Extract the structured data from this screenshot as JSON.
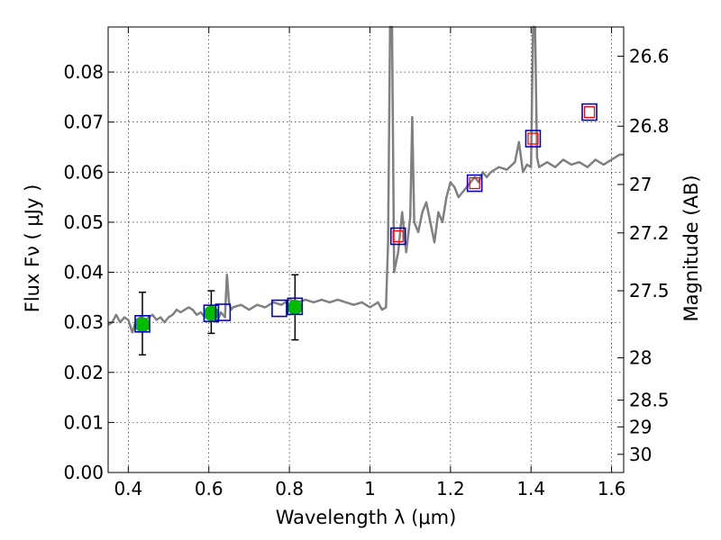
{
  "chart_data": {
    "type": "scatter",
    "xlabel": "Wavelength  λ (μm)",
    "ylabel": "Flux  Fν ( μJy )",
    "y2label": "Magnitude (AB)",
    "xlim": [
      0.35,
      1.63
    ],
    "ylim": [
      0.0,
      0.089
    ],
    "grid": true,
    "x_ticks": [
      0.4,
      0.6,
      0.8,
      1.0,
      1.2,
      1.4,
      1.6
    ],
    "x_tick_labels": [
      "0.4",
      "0.6",
      "0.8",
      "1",
      "1.2",
      "1.4",
      "1.6"
    ],
    "y_ticks": [
      0.0,
      0.01,
      0.02,
      0.03,
      0.04,
      0.05,
      0.06,
      0.07,
      0.08
    ],
    "y_tick_labels": [
      "0.00",
      "0.01",
      "0.02",
      "0.03",
      "0.04",
      "0.05",
      "0.06",
      "0.07",
      "0.08"
    ],
    "mag_ticks": [
      26.6,
      26.8,
      27.0,
      27.2,
      27.5,
      28.0,
      28.5,
      29.0,
      30.0
    ],
    "mag_tick_labels": [
      "26.6",
      "26.8",
      "27",
      "27.2",
      "27.5",
      "28",
      "28.5",
      "29",
      "30"
    ],
    "colors": {
      "spectrum": "#808080",
      "observed": "#00bb00",
      "model_box": "#0000cc",
      "model_inner": "#ff0000",
      "errorbar": "#000000"
    },
    "spectrum": {
      "x": [
        0.35,
        0.36,
        0.37,
        0.38,
        0.39,
        0.4,
        0.41,
        0.42,
        0.43,
        0.44,
        0.45,
        0.46,
        0.47,
        0.48,
        0.49,
        0.5,
        0.51,
        0.52,
        0.53,
        0.54,
        0.55,
        0.56,
        0.57,
        0.58,
        0.59,
        0.6,
        0.61,
        0.62,
        0.63,
        0.64,
        0.645,
        0.65,
        0.655,
        0.66,
        0.68,
        0.7,
        0.72,
        0.74,
        0.76,
        0.78,
        0.8,
        0.82,
        0.84,
        0.86,
        0.88,
        0.9,
        0.92,
        0.94,
        0.96,
        0.98,
        1.0,
        1.02,
        1.03,
        1.04,
        1.045,
        1.05,
        1.055,
        1.06,
        1.065,
        1.07,
        1.08,
        1.09,
        1.1,
        1.105,
        1.11,
        1.12,
        1.13,
        1.14,
        1.15,
        1.16,
        1.17,
        1.18,
        1.19,
        1.2,
        1.21,
        1.22,
        1.23,
        1.24,
        1.25,
        1.26,
        1.27,
        1.28,
        1.29,
        1.3,
        1.32,
        1.34,
        1.36,
        1.37,
        1.38,
        1.39,
        1.4,
        1.405,
        1.41,
        1.415,
        1.42,
        1.43,
        1.44,
        1.46,
        1.48,
        1.5,
        1.52,
        1.54,
        1.56,
        1.58,
        1.6,
        1.62,
        1.63
      ],
      "y": [
        0.0295,
        0.03,
        0.0315,
        0.03,
        0.031,
        0.0305,
        0.028,
        0.0305,
        0.031,
        0.03,
        0.031,
        0.0315,
        0.0305,
        0.031,
        0.03,
        0.031,
        0.0315,
        0.0325,
        0.032,
        0.0325,
        0.033,
        0.0325,
        0.0315,
        0.032,
        0.031,
        0.0315,
        0.031,
        0.03,
        0.032,
        0.031,
        0.0395,
        0.034,
        0.0325,
        0.033,
        0.0335,
        0.0325,
        0.0335,
        0.033,
        0.034,
        0.0335,
        0.0345,
        0.034,
        0.0345,
        0.034,
        0.0345,
        0.034,
        0.0345,
        0.034,
        0.0335,
        0.034,
        0.033,
        0.034,
        0.0325,
        0.033,
        0.046,
        0.089,
        0.089,
        0.04,
        0.042,
        0.044,
        0.052,
        0.044,
        0.051,
        0.071,
        0.05,
        0.048,
        0.052,
        0.054,
        0.05,
        0.046,
        0.052,
        0.05,
        0.055,
        0.058,
        0.057,
        0.055,
        0.056,
        0.057,
        0.058,
        0.059,
        0.058,
        0.06,
        0.059,
        0.06,
        0.061,
        0.0605,
        0.062,
        0.066,
        0.06,
        0.0615,
        0.061,
        0.089,
        0.089,
        0.063,
        0.061,
        0.0615,
        0.062,
        0.061,
        0.0625,
        0.0615,
        0.062,
        0.061,
        0.0625,
        0.0615,
        0.0625,
        0.0635,
        0.0635
      ]
    },
    "observed_points": [
      {
        "x": 0.435,
        "y": 0.0295,
        "yerr_low": 0.006,
        "yerr_high": 0.0065
      },
      {
        "x": 0.606,
        "y": 0.0318,
        "yerr_low": 0.004,
        "yerr_high": 0.0045
      },
      {
        "x": 0.814,
        "y": 0.033,
        "yerr_low": 0.0065,
        "yerr_high": 0.0065
      }
    ],
    "model_points": [
      {
        "x": 0.435,
        "y": 0.0297,
        "red": false
      },
      {
        "x": 0.606,
        "y": 0.0318,
        "red": false
      },
      {
        "x": 0.635,
        "y": 0.032,
        "red": false
      },
      {
        "x": 0.775,
        "y": 0.0328,
        "red": false
      },
      {
        "x": 0.814,
        "y": 0.0332,
        "red": false
      },
      {
        "x": 1.07,
        "y": 0.0472,
        "red": true
      },
      {
        "x": 1.26,
        "y": 0.0578,
        "red": true
      },
      {
        "x": 1.405,
        "y": 0.0667,
        "red": true
      },
      {
        "x": 1.545,
        "y": 0.072,
        "red": true
      }
    ]
  }
}
